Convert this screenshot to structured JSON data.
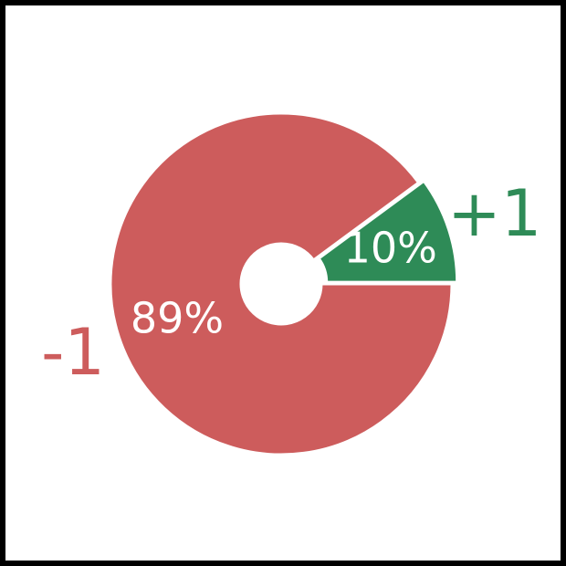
{
  "chart_data": {
    "type": "pie",
    "donut": true,
    "title": "",
    "categories": [
      "+1",
      "-1"
    ],
    "values": [
      10,
      89
    ],
    "value_labels": [
      "10%",
      "89%"
    ],
    "colors": [
      "#2e8b57",
      "#cd5c5c"
    ],
    "legend": "none"
  }
}
